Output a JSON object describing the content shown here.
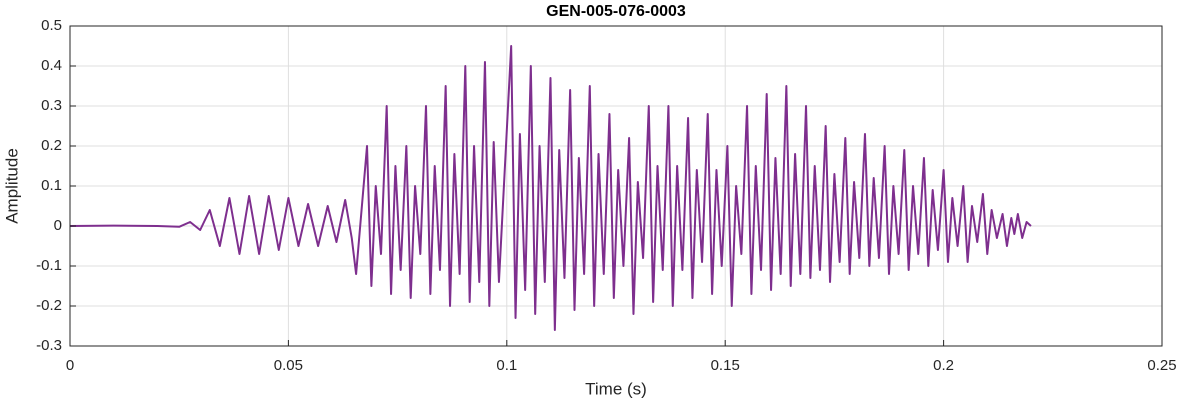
{
  "chart_data": {
    "type": "line",
    "title": "GEN-005-076-0003",
    "x_label": "Time (s)",
    "y_label": "Amplitude",
    "xlim": [
      0,
      0.25
    ],
    "ylim": [
      -0.3,
      0.5
    ],
    "xticks": [
      0,
      0.05,
      0.1,
      0.15,
      0.2,
      0.25
    ],
    "yticks": [
      -0.3,
      -0.2,
      -0.1,
      0,
      0.1,
      0.2,
      0.3,
      0.4,
      0.5
    ],
    "grid": true,
    "series": [
      {
        "color": "#7e2f8e",
        "x": [
          0,
          0.01,
          0.02,
          0.025,
          0.0275,
          0.0298,
          0.032,
          0.0343,
          0.0365,
          0.0388,
          0.041,
          0.0433,
          0.0455,
          0.0478,
          0.05,
          0.0523,
          0.0545,
          0.0568,
          0.059,
          0.061,
          0.063,
          0.0645,
          0.0655,
          0.068,
          0.069,
          0.07,
          0.0712,
          0.0725,
          0.0735,
          0.0745,
          0.0757,
          0.077,
          0.078,
          0.079,
          0.0802,
          0.0815,
          0.0825,
          0.0835,
          0.0847,
          0.086,
          0.087,
          0.088,
          0.0892,
          0.0905,
          0.0915,
          0.0925,
          0.0937,
          0.095,
          0.096,
          0.097,
          0.0982,
          0.101,
          0.102,
          0.103,
          0.1042,
          0.1055,
          0.1065,
          0.1075,
          0.1087,
          0.11,
          0.111,
          0.112,
          0.1132,
          0.1145,
          0.1155,
          0.1165,
          0.1177,
          0.119,
          0.12,
          0.121,
          0.1222,
          0.1235,
          0.1245,
          0.1255,
          0.1267,
          0.128,
          0.129,
          0.13,
          0.1312,
          0.1325,
          0.1335,
          0.1345,
          0.1357,
          0.137,
          0.138,
          0.139,
          0.1402,
          0.1415,
          0.1425,
          0.1435,
          0.1447,
          0.146,
          0.147,
          0.148,
          0.1492,
          0.1505,
          0.1515,
          0.1525,
          0.1537,
          0.155,
          0.156,
          0.157,
          0.1582,
          0.1595,
          0.1605,
          0.1615,
          0.1627,
          0.164,
          0.165,
          0.166,
          0.1672,
          0.1685,
          0.1695,
          0.1705,
          0.1717,
          0.173,
          0.174,
          0.175,
          0.1762,
          0.1775,
          0.1785,
          0.1795,
          0.1807,
          0.182,
          0.183,
          0.184,
          0.1852,
          0.1865,
          0.1875,
          0.1885,
          0.1897,
          0.191,
          0.192,
          0.193,
          0.1942,
          0.1955,
          0.1965,
          0.1975,
          0.1987,
          0.2,
          0.201,
          0.202,
          0.2032,
          0.2045,
          0.2055,
          0.2065,
          0.2077,
          0.209,
          0.21,
          0.211,
          0.2122,
          0.2135,
          0.2145,
          0.2155,
          0.2162,
          0.217,
          0.218,
          0.219,
          0.22
        ],
        "values": [
          0,
          0.001,
          0,
          -0.002,
          0.01,
          -0.01,
          0.04,
          -0.05,
          0.07,
          -0.07,
          0.075,
          -0.07,
          0.075,
          -0.06,
          0.07,
          -0.05,
          0.055,
          -0.05,
          0.05,
          -0.04,
          0.065,
          -0.03,
          -0.12,
          0.2,
          -0.15,
          0.1,
          -0.07,
          0.3,
          -0.17,
          0.15,
          -0.11,
          0.2,
          -0.18,
          0.1,
          -0.07,
          0.3,
          -0.17,
          0.15,
          -0.11,
          0.35,
          -0.2,
          0.18,
          -0.12,
          0.4,
          -0.19,
          0.2,
          -0.14,
          0.41,
          -0.2,
          0.21,
          -0.14,
          0.45,
          -0.23,
          0.23,
          -0.16,
          0.4,
          -0.22,
          0.2,
          -0.14,
          0.37,
          -0.26,
          0.19,
          -0.13,
          0.34,
          -0.21,
          0.17,
          -0.12,
          0.35,
          -0.2,
          0.18,
          -0.12,
          0.28,
          -0.18,
          0.14,
          -0.1,
          0.22,
          -0.22,
          0.11,
          -0.08,
          0.3,
          -0.19,
          0.15,
          -0.11,
          0.3,
          -0.2,
          0.15,
          -0.11,
          0.27,
          -0.18,
          0.14,
          -0.09,
          0.28,
          -0.17,
          0.14,
          -0.1,
          0.2,
          -0.2,
          0.1,
          -0.07,
          0.3,
          -0.17,
          0.15,
          -0.11,
          0.33,
          -0.16,
          0.17,
          -0.12,
          0.35,
          -0.15,
          0.18,
          -0.12,
          0.3,
          -0.13,
          0.15,
          -0.11,
          0.25,
          -0.14,
          0.13,
          -0.09,
          0.22,
          -0.12,
          0.11,
          -0.08,
          0.23,
          -0.1,
          0.12,
          -0.08,
          0.2,
          -0.12,
          0.1,
          -0.07,
          0.19,
          -0.11,
          0.1,
          -0.07,
          0.17,
          -0.1,
          0.09,
          -0.06,
          0.14,
          -0.09,
          0.07,
          -0.05,
          0.1,
          -0.09,
          0.05,
          -0.04,
          0.08,
          -0.07,
          0.04,
          -0.03,
          0.03,
          -0.05,
          0.02,
          -0.02,
          0.03,
          -0.03,
          0.01,
          0
        ]
      }
    ]
  }
}
